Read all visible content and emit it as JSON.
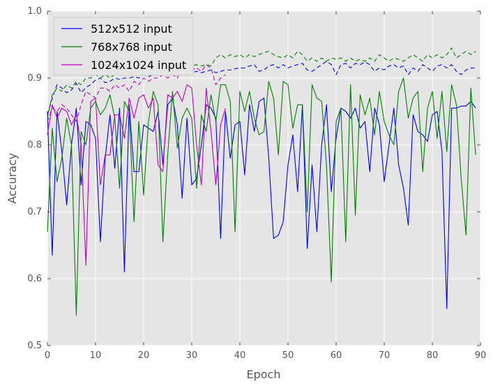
{
  "chart_data": {
    "type": "line",
    "title": "",
    "xlabel": "Epoch",
    "ylabel": "Accuracy",
    "xlim": [
      0,
      90
    ],
    "ylim": [
      0.5,
      1.0
    ],
    "xticks": [
      0,
      10,
      20,
      30,
      40,
      50,
      60,
      70,
      80,
      90
    ],
    "yticks": [
      0.5,
      0.6,
      0.7,
      0.8,
      0.9,
      1.0
    ],
    "tick_labels_x": [
      "0",
      "10",
      "20",
      "30",
      "40",
      "50",
      "60",
      "70",
      "80",
      "90"
    ],
    "tick_labels_y": [
      "0.5",
      "0.6",
      "0.7",
      "0.8",
      "0.9",
      "1.0"
    ],
    "grid": true,
    "legend_position": "top-left",
    "colors": {
      "background": "#e5e5e5",
      "grid": "#ffffff"
    },
    "series": [
      {
        "name": "512x512 input",
        "color": "#0000ff",
        "style": "solid",
        "x": [
          0,
          1,
          2,
          3,
          4,
          5,
          6,
          7,
          8,
          9,
          10,
          11,
          12,
          13,
          14,
          15,
          16,
          17,
          18,
          19,
          20,
          21,
          22,
          23,
          24,
          25,
          26,
          27,
          28,
          29,
          30,
          31,
          32,
          33,
          34,
          35,
          36,
          37,
          38,
          39,
          40,
          41,
          42,
          43,
          44,
          45,
          46,
          47,
          48,
          49,
          50,
          51,
          52,
          53,
          54,
          55,
          56,
          57,
          58,
          59,
          60,
          61,
          62,
          63,
          64,
          65,
          66,
          67,
          68,
          69,
          70,
          71,
          72,
          73,
          74,
          75,
          76,
          77,
          78,
          79,
          80,
          81,
          82,
          83,
          84,
          85,
          86,
          87,
          88,
          89
        ],
        "y": [
          0.85,
          0.635,
          0.85,
          0.79,
          0.71,
          0.8,
          0.855,
          0.74,
          0.835,
          0.83,
          0.81,
          0.655,
          0.78,
          0.845,
          0.765,
          0.855,
          0.61,
          0.86,
          0.76,
          0.76,
          0.83,
          0.825,
          0.82,
          0.85,
          0.77,
          0.86,
          0.87,
          0.83,
          0.72,
          0.84,
          0.74,
          0.75,
          0.8,
          0.86,
          0.855,
          0.84,
          0.66,
          0.85,
          0.78,
          0.83,
          0.835,
          0.755,
          0.86,
          0.82,
          0.865,
          0.87,
          0.78,
          0.66,
          0.665,
          0.685,
          0.77,
          0.815,
          0.73,
          0.86,
          0.645,
          0.77,
          0.67,
          0.8,
          0.86,
          0.73,
          0.81,
          0.855,
          0.85,
          0.84,
          0.855,
          0.825,
          0.835,
          0.76,
          0.855,
          0.83,
          0.745,
          0.8,
          0.855,
          0.77,
          0.735,
          0.68,
          0.845,
          0.82,
          0.815,
          0.805,
          0.845,
          0.85,
          0.79,
          0.555,
          0.855,
          0.855,
          0.858,
          0.858,
          0.865,
          0.855
        ]
      },
      {
        "name": "512x512 input (dashed)",
        "color": "#0000ff",
        "style": "dashed",
        "x": [
          0,
          1,
          2,
          3,
          4,
          5,
          6,
          7,
          8,
          9,
          10,
          11,
          12,
          13,
          14,
          15,
          16,
          17,
          18,
          19,
          20,
          21,
          22,
          23,
          24,
          25,
          26,
          27,
          28,
          29,
          30,
          31,
          32,
          33,
          34,
          35,
          36,
          37,
          38,
          39,
          40,
          41,
          42,
          43,
          44,
          45,
          46,
          47,
          48,
          49,
          50,
          51,
          52,
          53,
          54,
          55,
          56,
          57,
          58,
          59,
          60,
          61,
          62,
          63,
          64,
          65,
          66,
          67,
          68,
          69,
          70,
          71,
          72,
          73,
          74,
          75,
          76,
          77,
          78,
          79,
          80,
          81,
          82,
          83,
          84,
          85,
          86,
          87,
          88,
          89
        ],
        "y": [
          0.845,
          0.87,
          0.89,
          0.885,
          0.878,
          0.882,
          0.892,
          0.878,
          0.886,
          0.89,
          0.897,
          0.9,
          0.893,
          0.895,
          0.9,
          0.898,
          0.9,
          0.9,
          0.902,
          0.9,
          0.905,
          0.902,
          0.905,
          0.905,
          0.906,
          0.908,
          0.905,
          0.908,
          0.905,
          0.91,
          0.908,
          0.91,
          0.908,
          0.91,
          0.912,
          0.908,
          0.91,
          0.912,
          0.912,
          0.914,
          0.915,
          0.915,
          0.918,
          0.92,
          0.91,
          0.912,
          0.918,
          0.92,
          0.915,
          0.92,
          0.915,
          0.918,
          0.92,
          0.922,
          0.912,
          0.91,
          0.915,
          0.92,
          0.925,
          0.92,
          0.905,
          0.92,
          0.922,
          0.915,
          0.922,
          0.92,
          0.924,
          0.92,
          0.91,
          0.915,
          0.912,
          0.918,
          0.92,
          0.915,
          0.918,
          0.905,
          0.915,
          0.91,
          0.92,
          0.915,
          0.91,
          0.918,
          0.92,
          0.915,
          0.92,
          0.91,
          0.905,
          0.912,
          0.915,
          0.915
        ]
      },
      {
        "name": "768x768 input",
        "color": "#008000",
        "style": "solid",
        "x": [
          0,
          1,
          2,
          3,
          4,
          5,
          6,
          7,
          8,
          9,
          10,
          11,
          12,
          13,
          14,
          15,
          16,
          17,
          18,
          19,
          20,
          21,
          22,
          23,
          24,
          25,
          26,
          27,
          28,
          29,
          30,
          31,
          32,
          33,
          34,
          35,
          36,
          37,
          38,
          39,
          40,
          41,
          42,
          43,
          44,
          45,
          46,
          47,
          48,
          49,
          50,
          51,
          52,
          53,
          54,
          55,
          56,
          57,
          58,
          59,
          60,
          61,
          62,
          63,
          64,
          65,
          66,
          67,
          68,
          69,
          70,
          71,
          72,
          73,
          74,
          75,
          76,
          77,
          78,
          79,
          80,
          81,
          82,
          83,
          84,
          85,
          86,
          87,
          88,
          89
        ],
        "y": [
          0.67,
          0.825,
          0.745,
          0.78,
          0.84,
          0.8,
          0.545,
          0.82,
          0.8,
          0.855,
          0.865,
          0.845,
          0.855,
          0.875,
          0.84,
          0.735,
          0.865,
          0.85,
          0.685,
          0.835,
          0.725,
          0.835,
          0.88,
          0.86,
          0.655,
          0.785,
          0.88,
          0.795,
          0.84,
          0.855,
          0.84,
          0.735,
          0.845,
          0.82,
          0.875,
          0.835,
          0.89,
          0.89,
          0.865,
          0.67,
          0.88,
          0.85,
          0.88,
          0.84,
          0.815,
          0.82,
          0.895,
          0.87,
          0.785,
          0.895,
          0.89,
          0.825,
          0.86,
          0.86,
          0.7,
          0.89,
          0.87,
          0.865,
          0.77,
          0.595,
          0.835,
          0.855,
          0.655,
          0.89,
          0.695,
          0.875,
          0.845,
          0.87,
          0.815,
          0.88,
          0.835,
          0.815,
          0.8,
          0.88,
          0.9,
          0.84,
          0.87,
          0.88,
          0.76,
          0.855,
          0.88,
          0.81,
          0.88,
          0.79,
          0.89,
          0.86,
          0.75,
          0.665,
          0.885,
          0.785
        ]
      },
      {
        "name": "768x768 input (dashed)",
        "color": "#008000",
        "style": "dashed",
        "x": [
          0,
          1,
          2,
          3,
          4,
          5,
          6,
          7,
          8,
          9,
          10,
          11,
          12,
          13,
          14,
          15,
          16,
          17,
          18,
          19,
          20,
          21,
          22,
          23,
          24,
          25,
          26,
          27,
          28,
          29,
          30,
          31,
          32,
          33,
          34,
          35,
          36,
          37,
          38,
          39,
          40,
          41,
          42,
          43,
          44,
          45,
          46,
          47,
          48,
          49,
          50,
          51,
          52,
          53,
          54,
          55,
          56,
          57,
          58,
          59,
          60,
          61,
          62,
          63,
          64,
          65,
          66,
          67,
          68,
          69,
          70,
          71,
          72,
          73,
          74,
          75,
          76,
          77,
          78,
          79,
          80,
          81,
          82,
          83,
          84,
          85,
          86,
          87,
          88,
          89
        ],
        "y": [
          0.84,
          0.875,
          0.885,
          0.88,
          0.89,
          0.885,
          0.895,
          0.89,
          0.9,
          0.9,
          0.905,
          0.9,
          0.905,
          0.9,
          0.905,
          0.908,
          0.91,
          0.905,
          0.91,
          0.91,
          0.91,
          0.915,
          0.91,
          0.912,
          0.912,
          0.915,
          0.915,
          0.918,
          0.915,
          0.92,
          0.918,
          0.92,
          0.918,
          0.92,
          0.918,
          0.93,
          0.935,
          0.93,
          0.935,
          0.932,
          0.935,
          0.93,
          0.935,
          0.932,
          0.935,
          0.938,
          0.94,
          0.935,
          0.932,
          0.93,
          0.935,
          0.93,
          0.94,
          0.935,
          0.925,
          0.93,
          0.925,
          0.93,
          0.925,
          0.93,
          0.928,
          0.93,
          0.925,
          0.93,
          0.925,
          0.928,
          0.925,
          0.93,
          0.925,
          0.935,
          0.93,
          0.925,
          0.93,
          0.928,
          0.925,
          0.93,
          0.935,
          0.93,
          0.925,
          0.935,
          0.93,
          0.935,
          0.93,
          0.935,
          0.945,
          0.93,
          0.935,
          0.94,
          0.935,
          0.94
        ]
      },
      {
        "name": "1024x1024 input",
        "color": "#bf00bf",
        "style": "solid",
        "x": [
          0,
          1,
          2,
          3,
          4,
          5,
          6,
          7,
          8,
          9,
          10,
          11,
          12,
          13,
          14,
          15,
          16,
          17,
          18,
          19,
          20,
          21,
          22,
          23,
          24,
          25,
          26,
          27,
          28,
          29,
          30,
          31,
          32,
          33,
          34,
          35,
          36,
          37
        ],
        "y": [
          0.815,
          0.86,
          0.84,
          0.855,
          0.85,
          0.83,
          0.845,
          0.8,
          0.62,
          0.865,
          0.87,
          0.74,
          0.785,
          0.785,
          0.845,
          0.845,
          0.81,
          0.87,
          0.84,
          0.87,
          0.875,
          0.855,
          0.87,
          0.77,
          0.76,
          0.875,
          0.87,
          0.88,
          0.865,
          0.89,
          0.885,
          0.8,
          0.74,
          0.885,
          0.82,
          0.74,
          0.83,
          0.855
        ]
      },
      {
        "name": "1024x1024 input (dashed)",
        "color": "#bf00bf",
        "style": "dashed",
        "x": [
          0,
          1,
          2,
          3,
          4,
          5,
          6,
          7,
          8,
          9,
          10,
          11,
          12,
          13,
          14,
          15,
          16,
          17,
          18,
          19,
          20,
          21,
          22,
          23,
          24,
          25,
          26,
          27,
          28,
          29,
          30,
          31,
          32,
          33,
          34,
          35,
          36,
          37
        ],
        "y": [
          0.835,
          0.855,
          0.85,
          0.86,
          0.855,
          0.845,
          0.835,
          0.86,
          0.88,
          0.875,
          0.87,
          0.885,
          0.885,
          0.88,
          0.89,
          0.885,
          0.89,
          0.88,
          0.895,
          0.89,
          0.9,
          0.895,
          0.9,
          0.9,
          0.905,
          0.9,
          0.905,
          0.9,
          0.915,
          0.91,
          0.912,
          0.915,
          0.91,
          0.92,
          0.915,
          0.89,
          0.9,
          0.905
        ]
      }
    ],
    "legend_entries": [
      {
        "label": "512x512 input",
        "color": "#0000ff"
      },
      {
        "label": "768x768 input",
        "color": "#008000"
      },
      {
        "label": "1024x1024 input",
        "color": "#bf00bf"
      }
    ]
  }
}
